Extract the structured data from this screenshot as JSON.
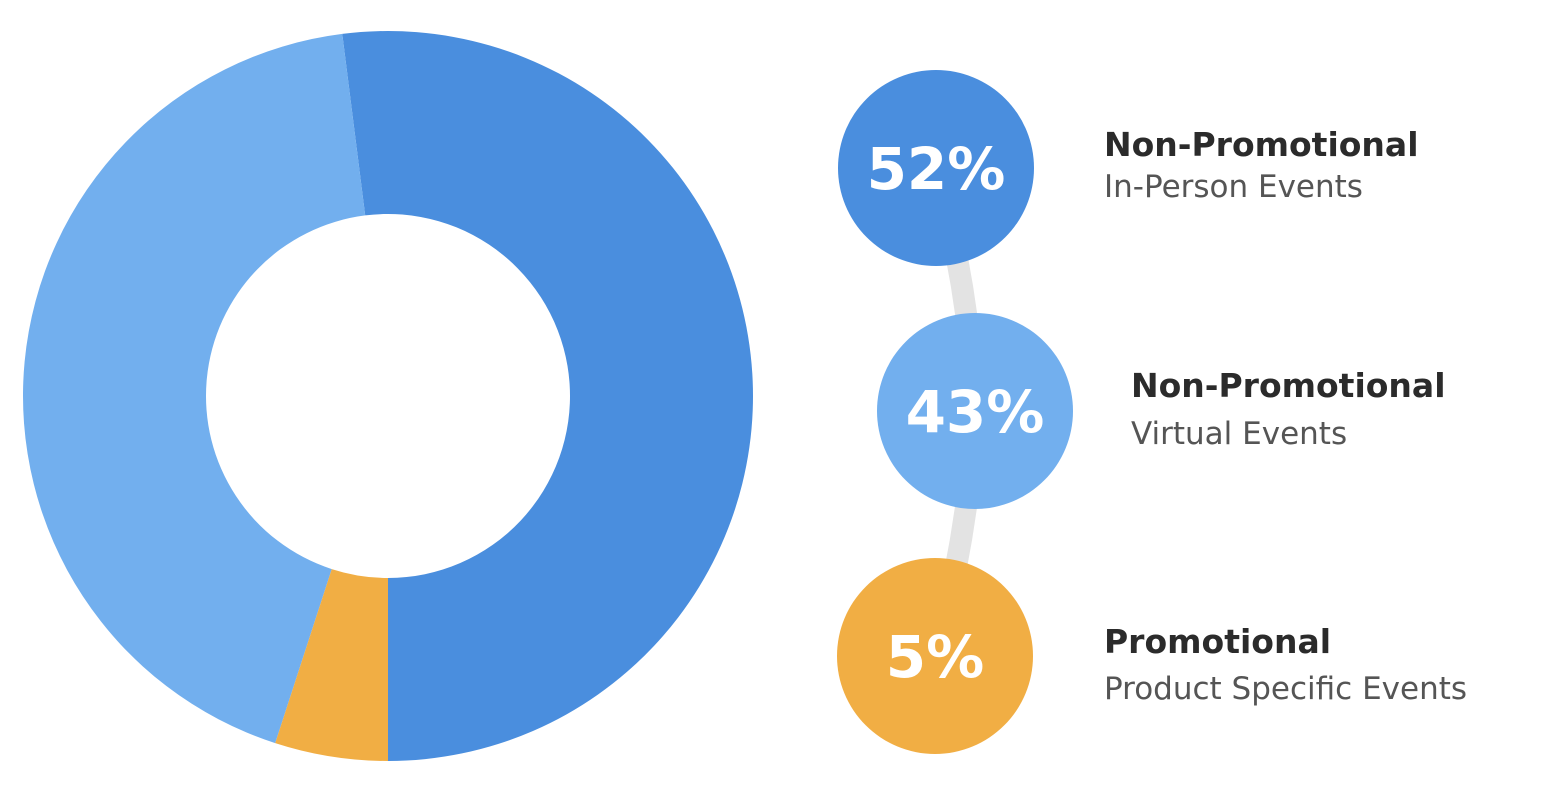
{
  "chart_data": {
    "type": "pie",
    "variant": "donut",
    "start_angle": "counter-clockwise from bottom",
    "slices": [
      {
        "value": 52,
        "label": "52%",
        "category": "Non-Promotional",
        "subcategory": "In-Person Events",
        "color": "#4A8EDE"
      },
      {
        "value": 43,
        "label": "43%",
        "category": "Non-Promotional",
        "subcategory": "Virtual Events",
        "color": "#72AFEE"
      },
      {
        "value": 5,
        "label": "5%",
        "category": "Promotional",
        "subcategory": "Product Specific Events",
        "color": "#F1AE44"
      }
    ]
  },
  "colors": {
    "connector": "#E3E3E3",
    "center": "#FFFFFF"
  }
}
